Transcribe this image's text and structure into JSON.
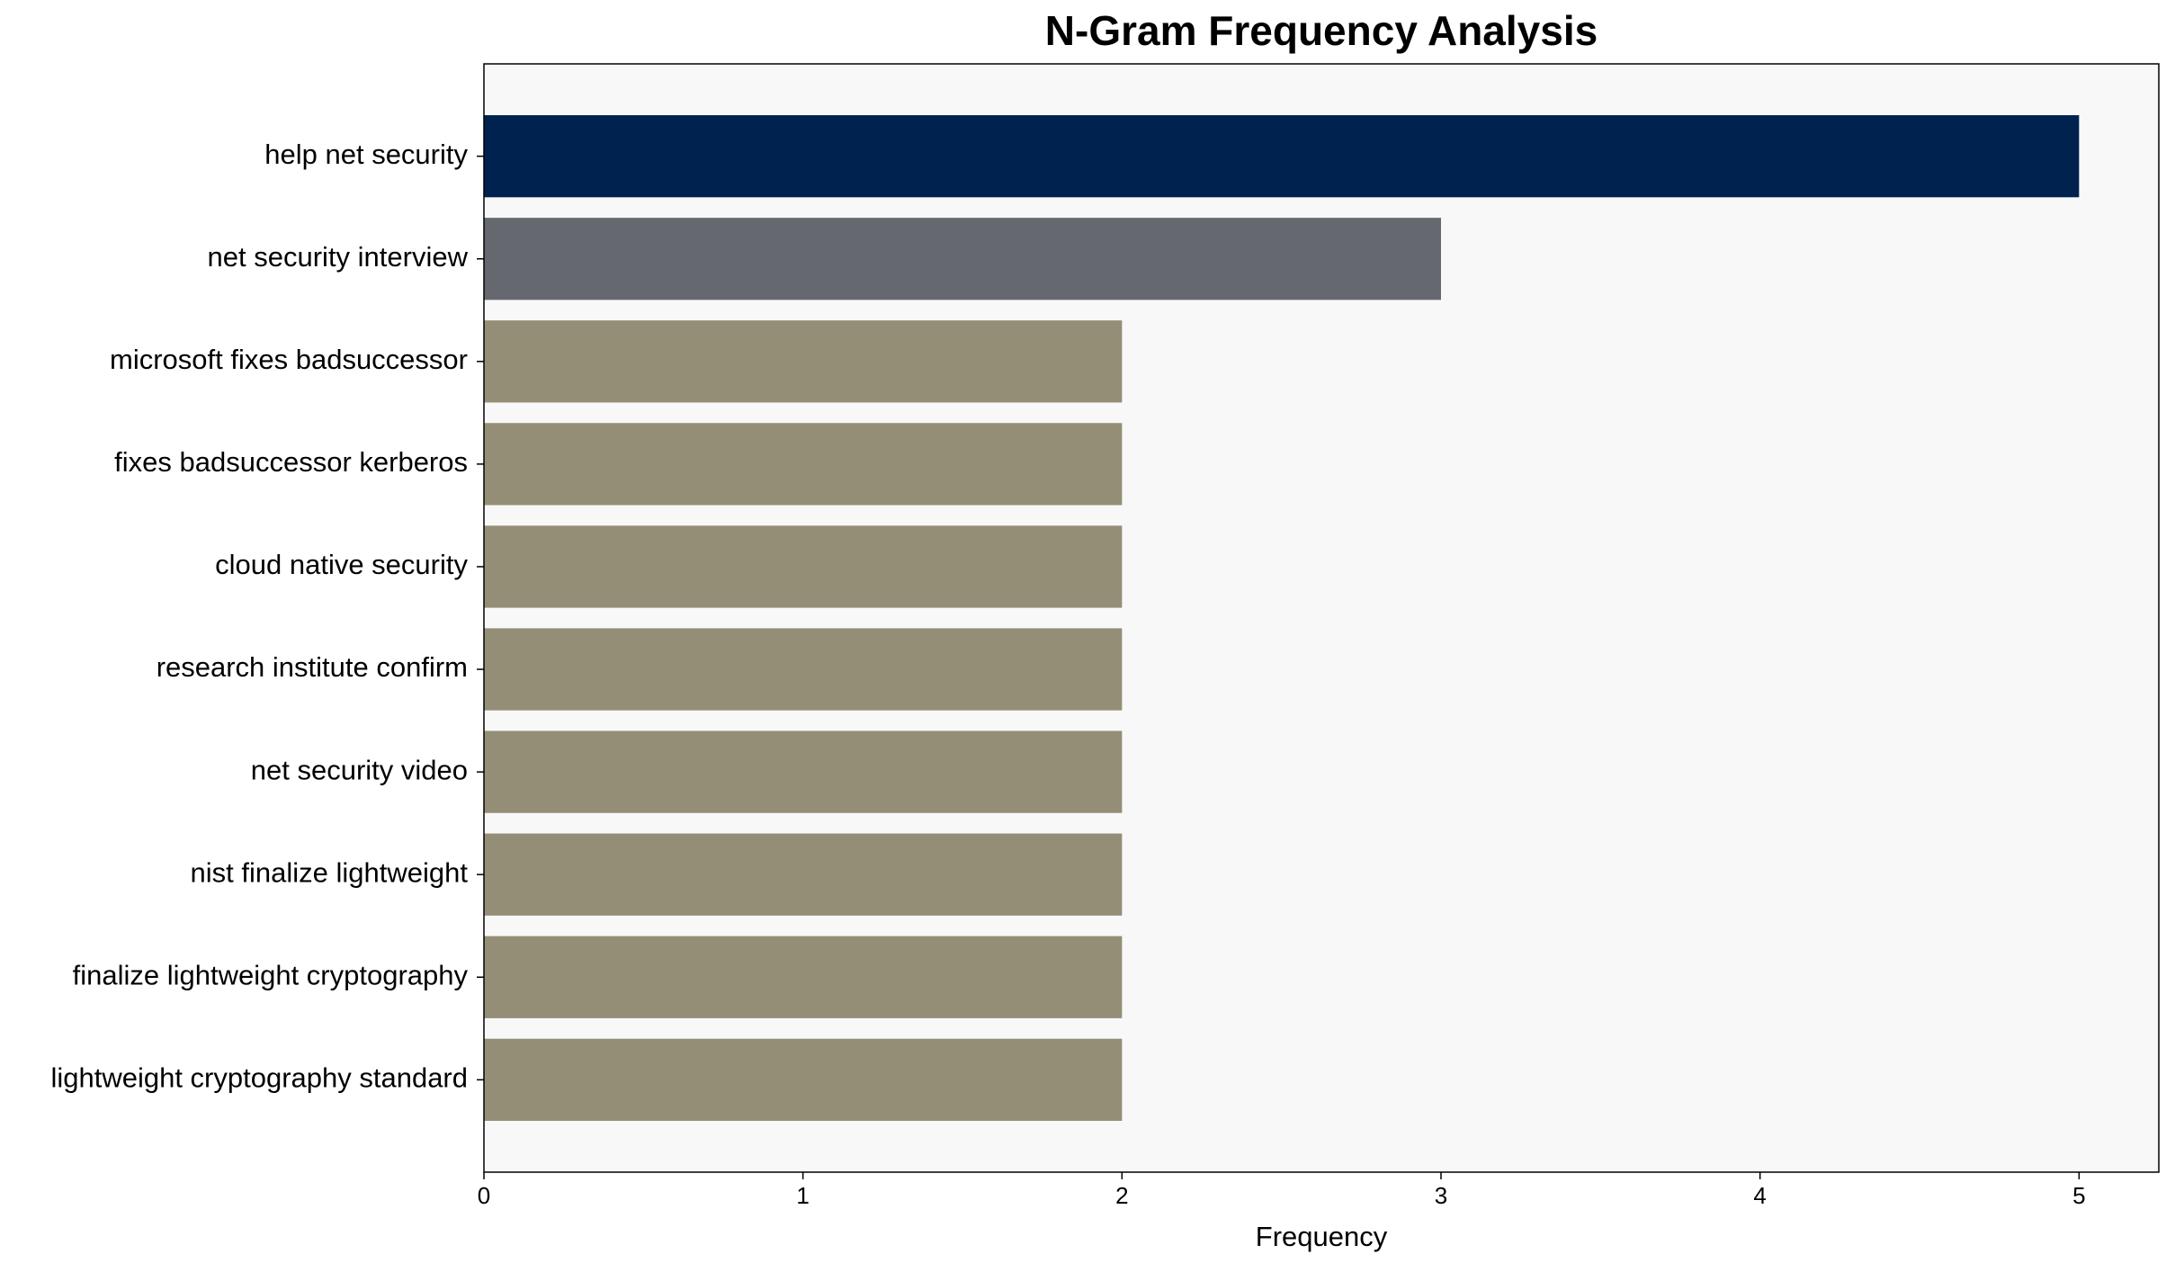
{
  "chart_data": {
    "type": "barh",
    "title": "N-Gram Frequency Analysis",
    "x_label": "Frequency",
    "categories": [
      "help net security",
      "net security interview",
      "microsoft fixes badsuccessor",
      "fixes badsuccessor kerberos",
      "cloud native security",
      "research institute confirm",
      "net security video",
      "nist finalize lightweight",
      "finalize lightweight cryptography",
      "lightweight cryptography standard"
    ],
    "values": [
      5,
      3,
      2,
      2,
      2,
      2,
      2,
      2,
      2,
      2
    ],
    "colors": [
      "#00224e",
      "#666870",
      "#948e77",
      "#948e77",
      "#948e77",
      "#948e77",
      "#948e77",
      "#948e77",
      "#948e77",
      "#948e77"
    ],
    "xlim": [
      0,
      5.25
    ],
    "xticks": [
      0,
      1,
      2,
      3,
      4,
      5
    ],
    "grid": false
  }
}
